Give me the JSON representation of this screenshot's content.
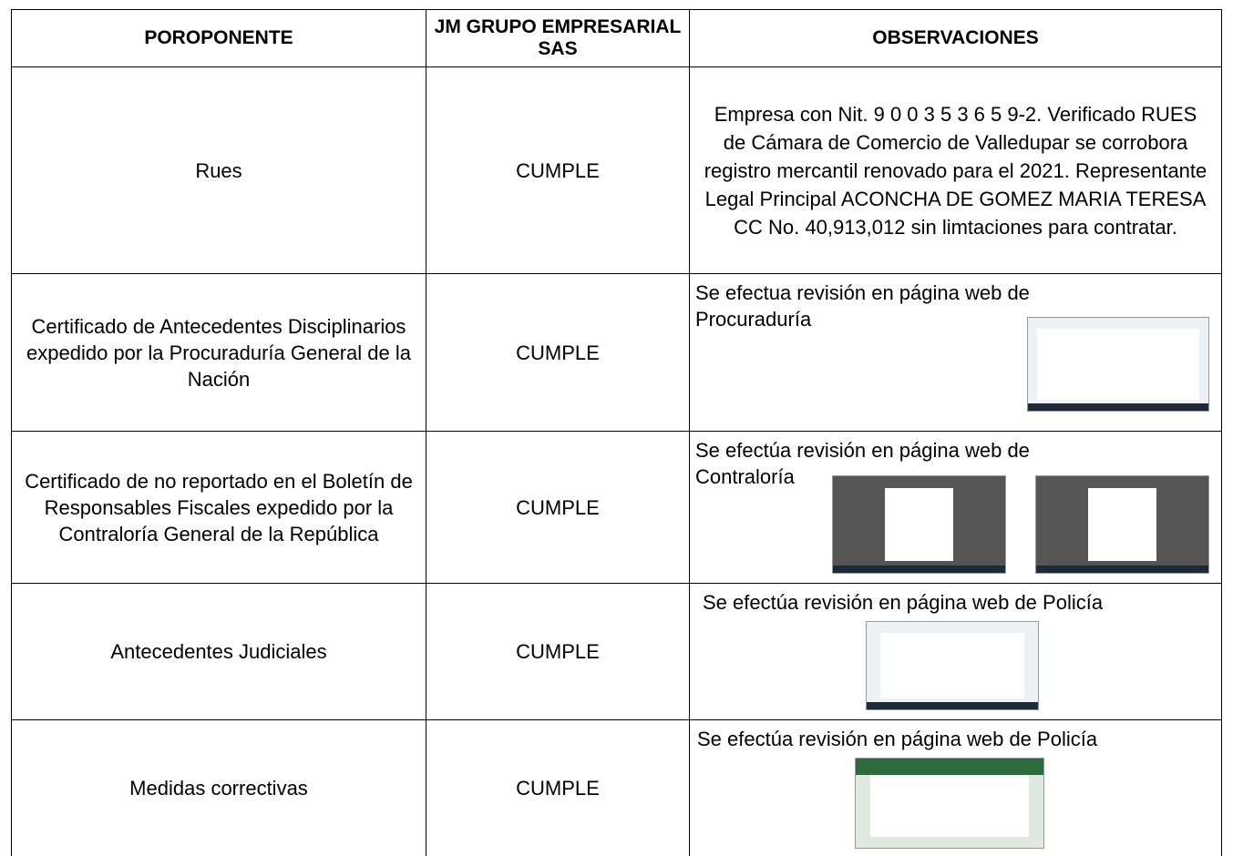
{
  "table": {
    "header": [
      "POROPONENTE",
      "JM GRUPO EMPRESARIAL SAS",
      "OBSERVACIONES"
    ],
    "rows": [
      [
        "Rues",
        "CUMPLE",
        "Empresa con Nit. 9 0 0 3 5 3 6 5 9-2. Verificado RUES de Cámara de Comercio de Valledupar se corrobora registro mercantil renovado para el 2021. Representante Legal Principal ACONCHA DE GOMEZ MARIA TERESA CC No. 40,913,012 sin limtaciones para contratar."
      ],
      [
        "Certificado de Antecedentes Disciplinarios expedido por la Procuraduría General de la Nación",
        "CUMPLE",
        "Se efectua revisión en página web de Procuraduría"
      ],
      [
        "Certificado de no reportado en el Boletín de Responsables Fiscales expedido por la Contraloría General de la República",
        "CUMPLE",
        "Se efectúa revisión en página web de Contraloría"
      ],
      [
        "Antecedentes Judiciales",
        "CUMPLE",
        "Se efectúa revisión en página web de Policía"
      ],
      [
        "Medidas correctivas",
        "CUMPLE",
        "Se efectúa revisión en página web de Policía"
      ]
    ]
  }
}
